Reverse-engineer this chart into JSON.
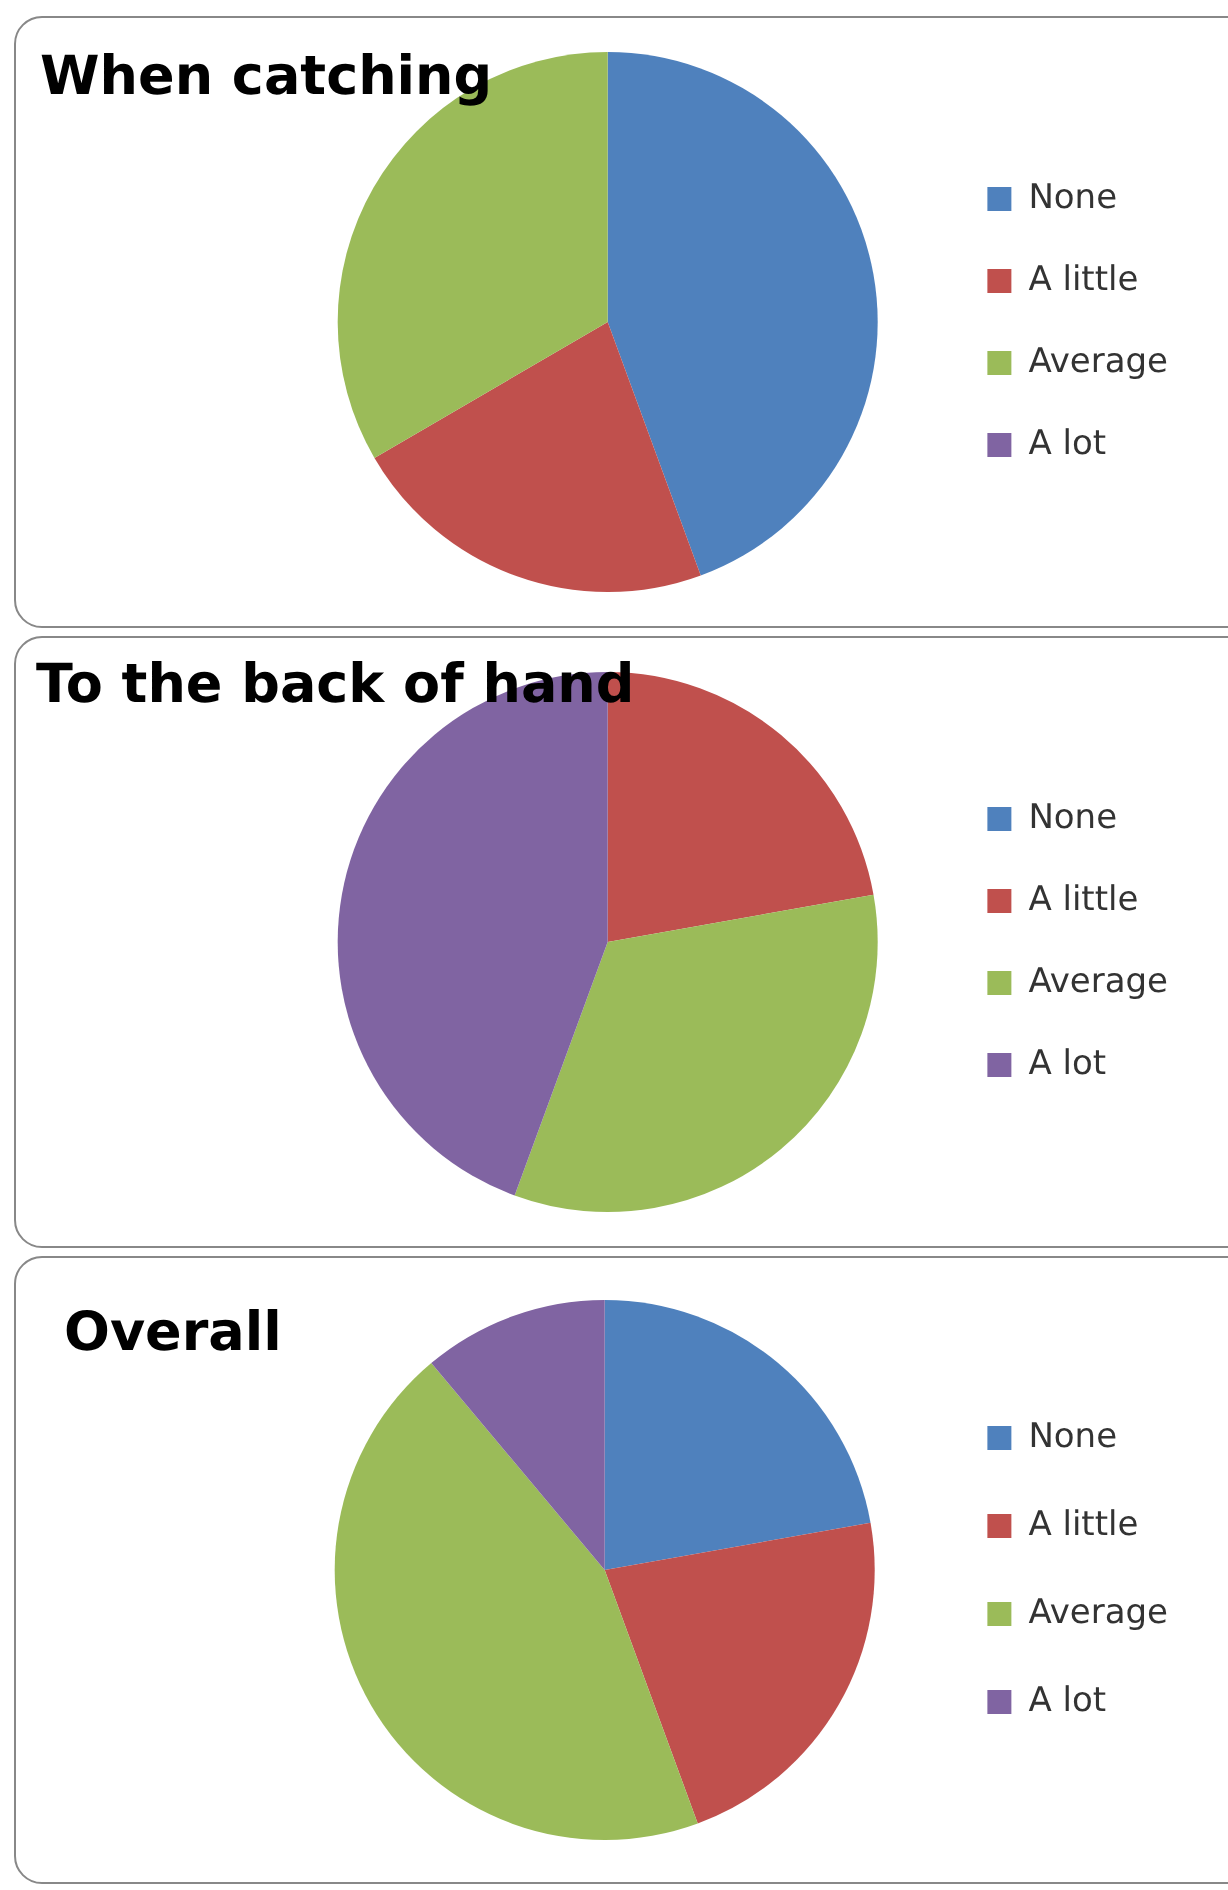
{
  "chart_data": [
    {
      "type": "pie",
      "title": "When catching",
      "categories": [
        "None",
        "A little",
        "Average",
        "A lot"
      ],
      "values": [
        44.4,
        22.2,
        33.4,
        0
      ],
      "colors": [
        "#4f81bd",
        "#c0504d",
        "#9bbb59",
        "#8064a2"
      ],
      "legend": "right"
    },
    {
      "type": "pie",
      "title": "To the back of hand",
      "categories": [
        "None",
        "A little",
        "Average",
        "A lot"
      ],
      "values": [
        0,
        22.2,
        33.4,
        44.4
      ],
      "colors": [
        "#4f81bd",
        "#c0504d",
        "#9bbb59",
        "#8064a2"
      ],
      "legend": "right"
    },
    {
      "type": "pie",
      "title": "Overall",
      "categories": [
        "None",
        "A little",
        "Average",
        "A lot"
      ],
      "values": [
        22.2,
        22.2,
        44.5,
        11.1
      ],
      "colors": [
        "#4f81bd",
        "#c0504d",
        "#9bbb59",
        "#8064a2"
      ],
      "legend": "right"
    }
  ]
}
